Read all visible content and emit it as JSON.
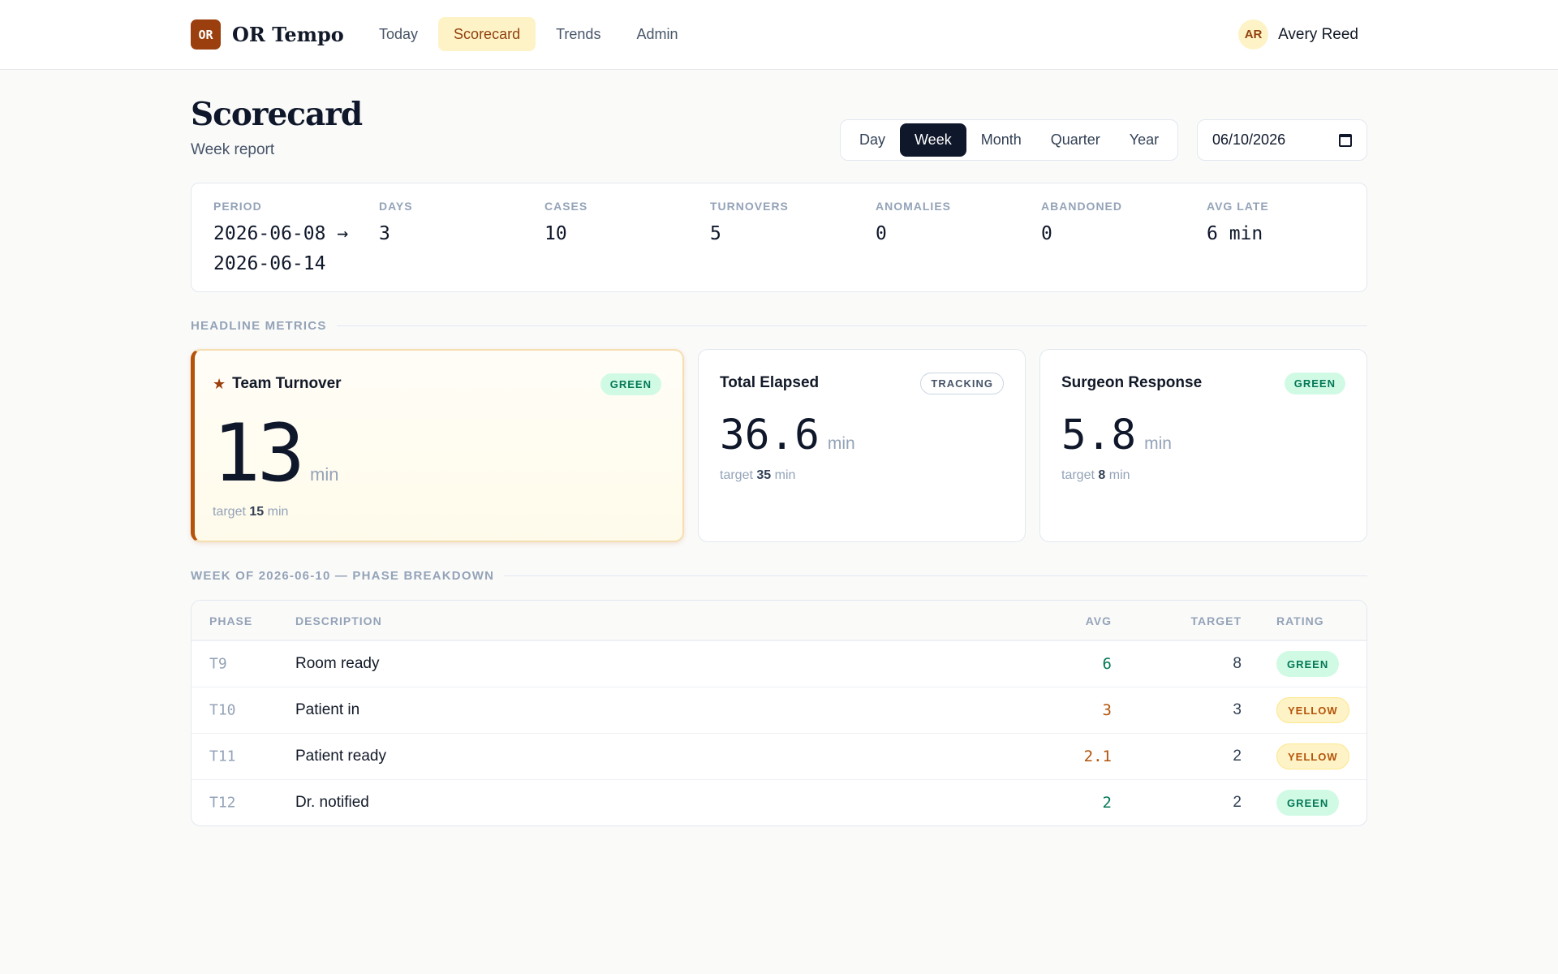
{
  "brand": {
    "logo": "OR",
    "name": "OR Tempo"
  },
  "nav": {
    "items": [
      "Today",
      "Scorecard",
      "Trends",
      "Admin"
    ],
    "active": "Scorecard"
  },
  "user": {
    "initials": "AR",
    "name": "Avery Reed"
  },
  "header": {
    "title": "Scorecard",
    "subtitle": "Week report"
  },
  "range": {
    "options": [
      "Day",
      "Week",
      "Month",
      "Quarter",
      "Year"
    ],
    "active": "Week"
  },
  "date": {
    "value": "06/10/2026",
    "icon": "calendar-icon"
  },
  "stats": [
    {
      "label": "PERIOD",
      "value": "2026-06-08 → 2026-06-14"
    },
    {
      "label": "DAYS",
      "value": "3"
    },
    {
      "label": "CASES",
      "value": "10"
    },
    {
      "label": "TURNOVERS",
      "value": "5"
    },
    {
      "label": "ANOMALIES",
      "value": "0"
    },
    {
      "label": "ABANDONED",
      "value": "0"
    },
    {
      "label": "AVG LATE",
      "value": "6 min"
    }
  ],
  "headline": {
    "section_title": "HEADLINE METRICS",
    "cards": [
      {
        "title": "Team Turnover",
        "star": "★",
        "badge": "GREEN",
        "value": "13",
        "unit": "min",
        "target_prefix": "target",
        "target_value": "15",
        "target_unit": "min"
      },
      {
        "title": "Total Elapsed",
        "badge": "TRACKING",
        "value": "36.6",
        "unit": "min",
        "target_prefix": "target",
        "target_value": "35",
        "target_unit": "min"
      },
      {
        "title": "Surgeon Response",
        "badge": "GREEN",
        "value": "5.8",
        "unit": "min",
        "target_prefix": "target",
        "target_value": "8",
        "target_unit": "min"
      }
    ]
  },
  "breakdown": {
    "section_title": "WEEK OF 2026-06-10 — PHASE BREAKDOWN",
    "columns": {
      "phase": "PHASE",
      "description": "DESCRIPTION",
      "avg": "AVG",
      "target": "TARGET",
      "rating": "RATING"
    },
    "rows": [
      {
        "phase": "T9",
        "description": "Room ready",
        "avg": "6",
        "target": "8",
        "rating": "GREEN"
      },
      {
        "phase": "T10",
        "description": "Patient in",
        "avg": "3",
        "target": "3",
        "rating": "YELLOW"
      },
      {
        "phase": "T11",
        "description": "Patient ready",
        "avg": "2.1",
        "target": "2",
        "rating": "YELLOW"
      },
      {
        "phase": "T12",
        "description": "Dr. notified",
        "avg": "2",
        "target": "2",
        "rating": "GREEN"
      }
    ]
  },
  "colors": {
    "accent": "#9a3f0d",
    "green": "#047857",
    "yellow": "#b45309",
    "dark": "#0f172a"
  }
}
